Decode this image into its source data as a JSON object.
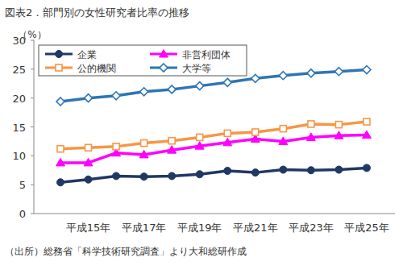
{
  "chart_data": {
    "type": "line",
    "title": "図表2．部門別の女性研究者比率の推移",
    "y_label": "（%）",
    "source": "（出所）総務省「科学技術研究調査」より大和総研作成",
    "categories": [
      null,
      "平成15年",
      null,
      "平成17年",
      null,
      "平成19年",
      null,
      "平成21年",
      null,
      "平成23年",
      null,
      "平成25年"
    ],
    "series": [
      {
        "name": "企業",
        "color": "#203864",
        "marker": "circle",
        "values": [
          5.4,
          5.9,
          6.5,
          6.4,
          6.5,
          6.8,
          7.4,
          7.1,
          7.6,
          7.5,
          7.6,
          7.9
        ]
      },
      {
        "name": "非営利団体",
        "color": "#ff00ff",
        "marker": "triangle",
        "values": [
          8.8,
          8.8,
          10.5,
          10.2,
          11.0,
          11.7,
          12.3,
          12.9,
          12.5,
          13.2,
          13.5,
          13.6
        ]
      },
      {
        "name": "公的機関",
        "color": "#f79646",
        "marker": "square",
        "values": [
          11.2,
          11.4,
          11.6,
          12.2,
          12.6,
          13.2,
          13.9,
          14.1,
          14.7,
          15.5,
          15.4,
          15.9
        ]
      },
      {
        "name": "大学等",
        "color": "#2e75b6",
        "marker": "diamond",
        "values": [
          19.4,
          20.0,
          20.4,
          21.1,
          21.5,
          22.1,
          22.7,
          23.4,
          23.9,
          24.3,
          24.6,
          24.9
        ]
      }
    ],
    "ylim": [
      0,
      30
    ],
    "yticks": [
      0,
      5,
      10,
      15,
      20,
      25,
      30
    ],
    "grid": false,
    "legend": "upper left"
  }
}
